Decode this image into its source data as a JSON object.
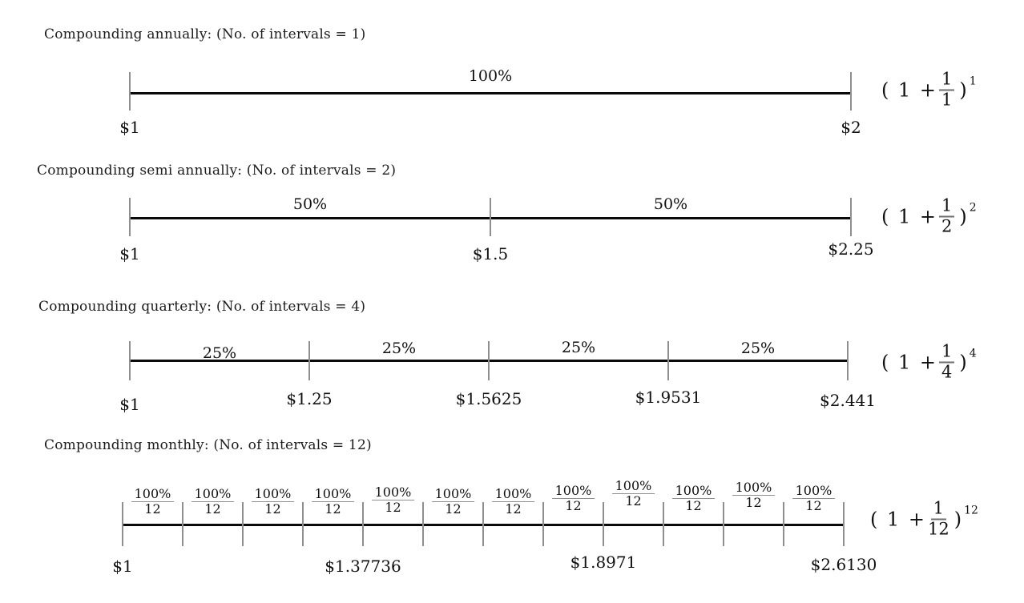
{
  "page": {
    "background": "#ffffff",
    "line_color": "#0a0a0a",
    "tick_color": "#8f8f8f"
  },
  "sections": [
    {
      "title": "Compounding annually: (No. of intervals = 1)",
      "interval_count": 1,
      "segment_labels": [
        {
          "text": "100%"
        }
      ],
      "dollar_labels": [
        {
          "text": "$1",
          "tick": 0
        },
        {
          "text": "$2",
          "tick": 1
        }
      ],
      "formula": {
        "prefix": "( 1 +",
        "numerator": "1",
        "denominator": "1",
        "close": ")",
        "exponent": "1"
      }
    },
    {
      "title": "Compounding semi annually: (No. of intervals = 2)",
      "interval_count": 2,
      "segment_labels": [
        {
          "text": "50%"
        },
        {
          "text": "50%"
        }
      ],
      "dollar_labels": [
        {
          "text": "$1",
          "tick": 0
        },
        {
          "text": "$1.5",
          "tick": 1
        },
        {
          "text": "$2.25",
          "tick": 2
        }
      ],
      "formula": {
        "prefix": "( 1 +",
        "numerator": "1",
        "denominator": "2",
        "close": ")",
        "exponent": "2"
      }
    },
    {
      "title": "Compounding quarterly: (No. of intervals = 4)",
      "interval_count": 4,
      "segment_labels": [
        {
          "text": "25%"
        },
        {
          "text": "25%"
        },
        {
          "text": "25%"
        },
        {
          "text": "25%"
        }
      ],
      "dollar_labels": [
        {
          "text": "$1",
          "tick": 0
        },
        {
          "text": "$1.25",
          "tick": 1
        },
        {
          "text": "$1.5625",
          "tick": 2
        },
        {
          "text": "$1.9531",
          "tick": 3
        },
        {
          "text": "$2.441",
          "tick": 4
        }
      ],
      "formula": {
        "prefix": "( 1 +",
        "numerator": "1",
        "denominator": "4",
        "close": ")",
        "exponent": "4"
      }
    },
    {
      "title": "Compounding monthly: (No. of intervals = 12)",
      "interval_count": 12,
      "segment_labels": [
        {
          "num": "100%",
          "den": "12"
        },
        {
          "num": "100%",
          "den": "12"
        },
        {
          "num": "100%",
          "den": "12"
        },
        {
          "num": "100%",
          "den": "12"
        },
        {
          "num": "100%",
          "den": "12"
        },
        {
          "num": "100%",
          "den": "12"
        },
        {
          "num": "100%",
          "den": "12"
        },
        {
          "num": "100%",
          "den": "12"
        },
        {
          "num": "100%",
          "den": "12"
        },
        {
          "num": "100%",
          "den": "12"
        },
        {
          "num": "100%",
          "den": "12"
        },
        {
          "num": "100%",
          "den": "12"
        }
      ],
      "dollar_labels": [
        {
          "text": "$1",
          "tick": 0
        },
        {
          "text": "$1.37736",
          "tick": 4
        },
        {
          "text": "$1.8971",
          "tick": 8
        },
        {
          "text": "$2.6130",
          "tick": 12
        }
      ],
      "formula": {
        "prefix": "( 1 +",
        "numerator": "1",
        "denominator": "12",
        "close": ")",
        "exponent": "12"
      }
    }
  ]
}
